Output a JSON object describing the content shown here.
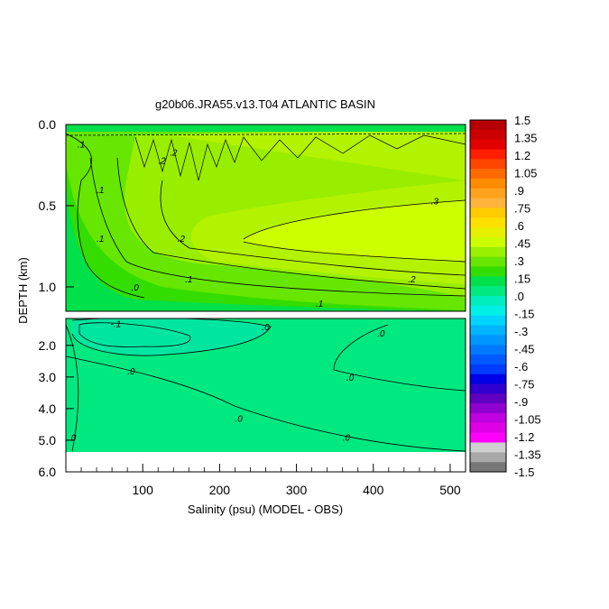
{
  "chart_data": {
    "type": "heatmap",
    "title": "g20b06.JRA55.v13.T04 ATLANTIC BASIN",
    "xlabel": "Salinity (psu) (MODEL - OBS)",
    "ylabel": "DEPTH (km)",
    "xlim": [
      0,
      520
    ],
    "x_ticks": [
      "100",
      "200",
      "300",
      "400",
      "500"
    ],
    "y_ticks_upper": [
      "0.0",
      "0.5",
      "1.0"
    ],
    "y_ticks_lower": [
      "2.0",
      "3.0",
      "4.0",
      "5.0",
      "6.0"
    ],
    "colorbar": {
      "labels": [
        "1.5",
        "1.35",
        "1.2",
        "1.05",
        ".9",
        ".75",
        ".6",
        ".45",
        ".3",
        ".15",
        ".0",
        "-.15",
        "-.3",
        "-.45",
        "-.6",
        "-.75",
        "-.9",
        "-1.05",
        "-1.2",
        "-1.35",
        "-1.5"
      ],
      "colors": [
        "#b40000",
        "#cc0000",
        "#e20000",
        "#ff1e00",
        "#ff4600",
        "#ff6a00",
        "#ff8c00",
        "#ffa31e",
        "#ffb43c",
        "#ffcc00",
        "#ffe000",
        "#e6f000",
        "#ccff00",
        "#99f000",
        "#66e600",
        "#33dd00",
        "#00e04a",
        "#00e880",
        "#00eebe",
        "#00f0e6",
        "#00d4ff",
        "#00b4ff",
        "#0096ff",
        "#0078ff",
        "#005aff",
        "#003cff",
        "#0000e6",
        "#3000d0",
        "#6000c0",
        "#9000d0",
        "#c000e0",
        "#e000e6",
        "#ff00ff",
        "#d0d0d0",
        "#a8a8a8",
        "#787878"
      ]
    },
    "contour_labels": [
      {
        "text": ".1",
        "x": 20,
        "y": 0.12
      },
      {
        "text": ".2",
        "x": 140,
        "y": 0.17
      },
      {
        "text": ".2",
        "x": 125,
        "y": 0.22
      },
      {
        "text": ".1",
        "x": 45,
        "y": 0.4
      },
      {
        "text": ".1",
        "x": 45,
        "y": 0.7
      },
      {
        "text": ".2",
        "x": 150,
        "y": 0.7
      },
      {
        "text": ".1",
        "x": 160,
        "y": 0.95
      },
      {
        "text": ".0",
        "x": 90,
        "y": 1.0
      },
      {
        "text": ".3",
        "x": 480,
        "y": 0.47
      },
      {
        "text": ".2",
        "x": 450,
        "y": 0.95
      },
      {
        "text": ".1",
        "x": 330,
        "y": 1.1
      },
      {
        "text": "-.1",
        "x": 65,
        "y": 1.3
      },
      {
        "text": ".0",
        "x": 260,
        "y": 1.4
      },
      {
        "text": ".0",
        "x": 410,
        "y": 1.6
      },
      {
        "text": ".0",
        "x": 85,
        "y": 2.8
      },
      {
        "text": ".0",
        "x": 370,
        "y": 3.0
      },
      {
        "text": ".0",
        "x": 225,
        "y": 4.3
      },
      {
        "text": ".0",
        "x": 365,
        "y": 4.9
      },
      {
        "text": "0",
        "x": 10,
        "y": 4.9
      }
    ]
  }
}
